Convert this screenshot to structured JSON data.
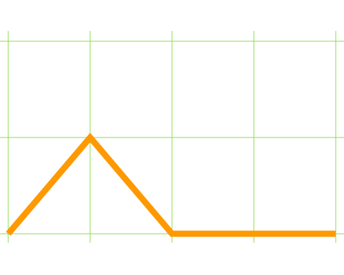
{
  "chart_data": {
    "type": "line",
    "x": [
      0,
      1,
      2,
      3,
      4
    ],
    "series": [
      {
        "color": "#ff9900",
        "values": [
          0,
          1,
          0,
          0,
          0
        ]
      }
    ],
    "xlim": [
      0,
      4
    ],
    "xticks": [
      0,
      1,
      2,
      3,
      4
    ],
    "ylim": [
      0,
      2
    ],
    "yticks": [
      0,
      1,
      2
    ],
    "grid": true,
    "grid_color": "#88dd44"
  }
}
